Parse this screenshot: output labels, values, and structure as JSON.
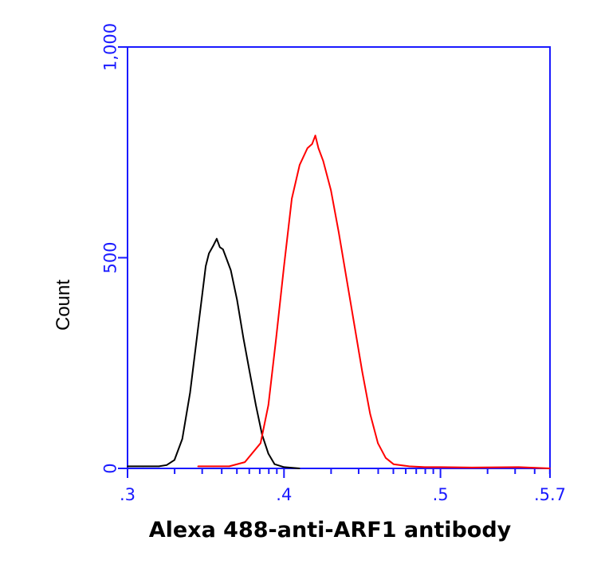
{
  "chart_data": {
    "type": "line",
    "title": "",
    "xlabel": "Alexa 488-anti-ARF1 antibody",
    "ylabel": "Count",
    "x_scale": "log",
    "xlim_log10": [
      3,
      5.7
    ],
    "ylim": [
      0,
      1000
    ],
    "y_ticks": [
      {
        "value": 0,
        "label": "0"
      },
      {
        "value": 500,
        "label": "500"
      },
      {
        "value": 1000,
        "label": "1,000"
      }
    ],
    "x_ticks": [
      {
        "value": 3,
        "label": ".3"
      },
      {
        "value": 4,
        "label": ".4"
      },
      {
        "value": 5,
        "label": ".5"
      },
      {
        "value": 5.7,
        "label": ".5.7"
      }
    ],
    "grid": false,
    "legend": "none",
    "colors": {
      "axis": "#1a1aff",
      "control": "#000000",
      "stained": "#ff0000"
    },
    "series": [
      {
        "color": "#000000",
        "points": [
          [
            3.0,
            5
          ],
          [
            3.1,
            5
          ],
          [
            3.2,
            5
          ],
          [
            3.25,
            8
          ],
          [
            3.3,
            20
          ],
          [
            3.35,
            70
          ],
          [
            3.4,
            180
          ],
          [
            3.45,
            330
          ],
          [
            3.48,
            420
          ],
          [
            3.5,
            480
          ],
          [
            3.52,
            510
          ],
          [
            3.55,
            530
          ],
          [
            3.57,
            545
          ],
          [
            3.59,
            525
          ],
          [
            3.61,
            520
          ],
          [
            3.63,
            500
          ],
          [
            3.66,
            470
          ],
          [
            3.7,
            400
          ],
          [
            3.74,
            310
          ],
          [
            3.78,
            230
          ],
          [
            3.82,
            150
          ],
          [
            3.86,
            80
          ],
          [
            3.9,
            35
          ],
          [
            3.94,
            10
          ],
          [
            4.0,
            3
          ],
          [
            4.1,
            0
          ]
        ]
      },
      {
        "color": "#ff0000",
        "points": [
          [
            3.45,
            5
          ],
          [
            3.55,
            5
          ],
          [
            3.65,
            5
          ],
          [
            3.75,
            15
          ],
          [
            3.85,
            60
          ],
          [
            3.9,
            150
          ],
          [
            3.95,
            310
          ],
          [
            4.0,
            480
          ],
          [
            4.05,
            640
          ],
          [
            4.1,
            720
          ],
          [
            4.15,
            760
          ],
          [
            4.18,
            770
          ],
          [
            4.2,
            790
          ],
          [
            4.22,
            760
          ],
          [
            4.25,
            730
          ],
          [
            4.3,
            660
          ],
          [
            4.35,
            560
          ],
          [
            4.4,
            450
          ],
          [
            4.45,
            340
          ],
          [
            4.5,
            230
          ],
          [
            4.55,
            130
          ],
          [
            4.6,
            60
          ],
          [
            4.65,
            25
          ],
          [
            4.7,
            10
          ],
          [
            4.8,
            5
          ],
          [
            4.9,
            3
          ],
          [
            5.0,
            3
          ],
          [
            5.2,
            2
          ],
          [
            5.5,
            3
          ],
          [
            5.7,
            0
          ]
        ]
      }
    ]
  }
}
